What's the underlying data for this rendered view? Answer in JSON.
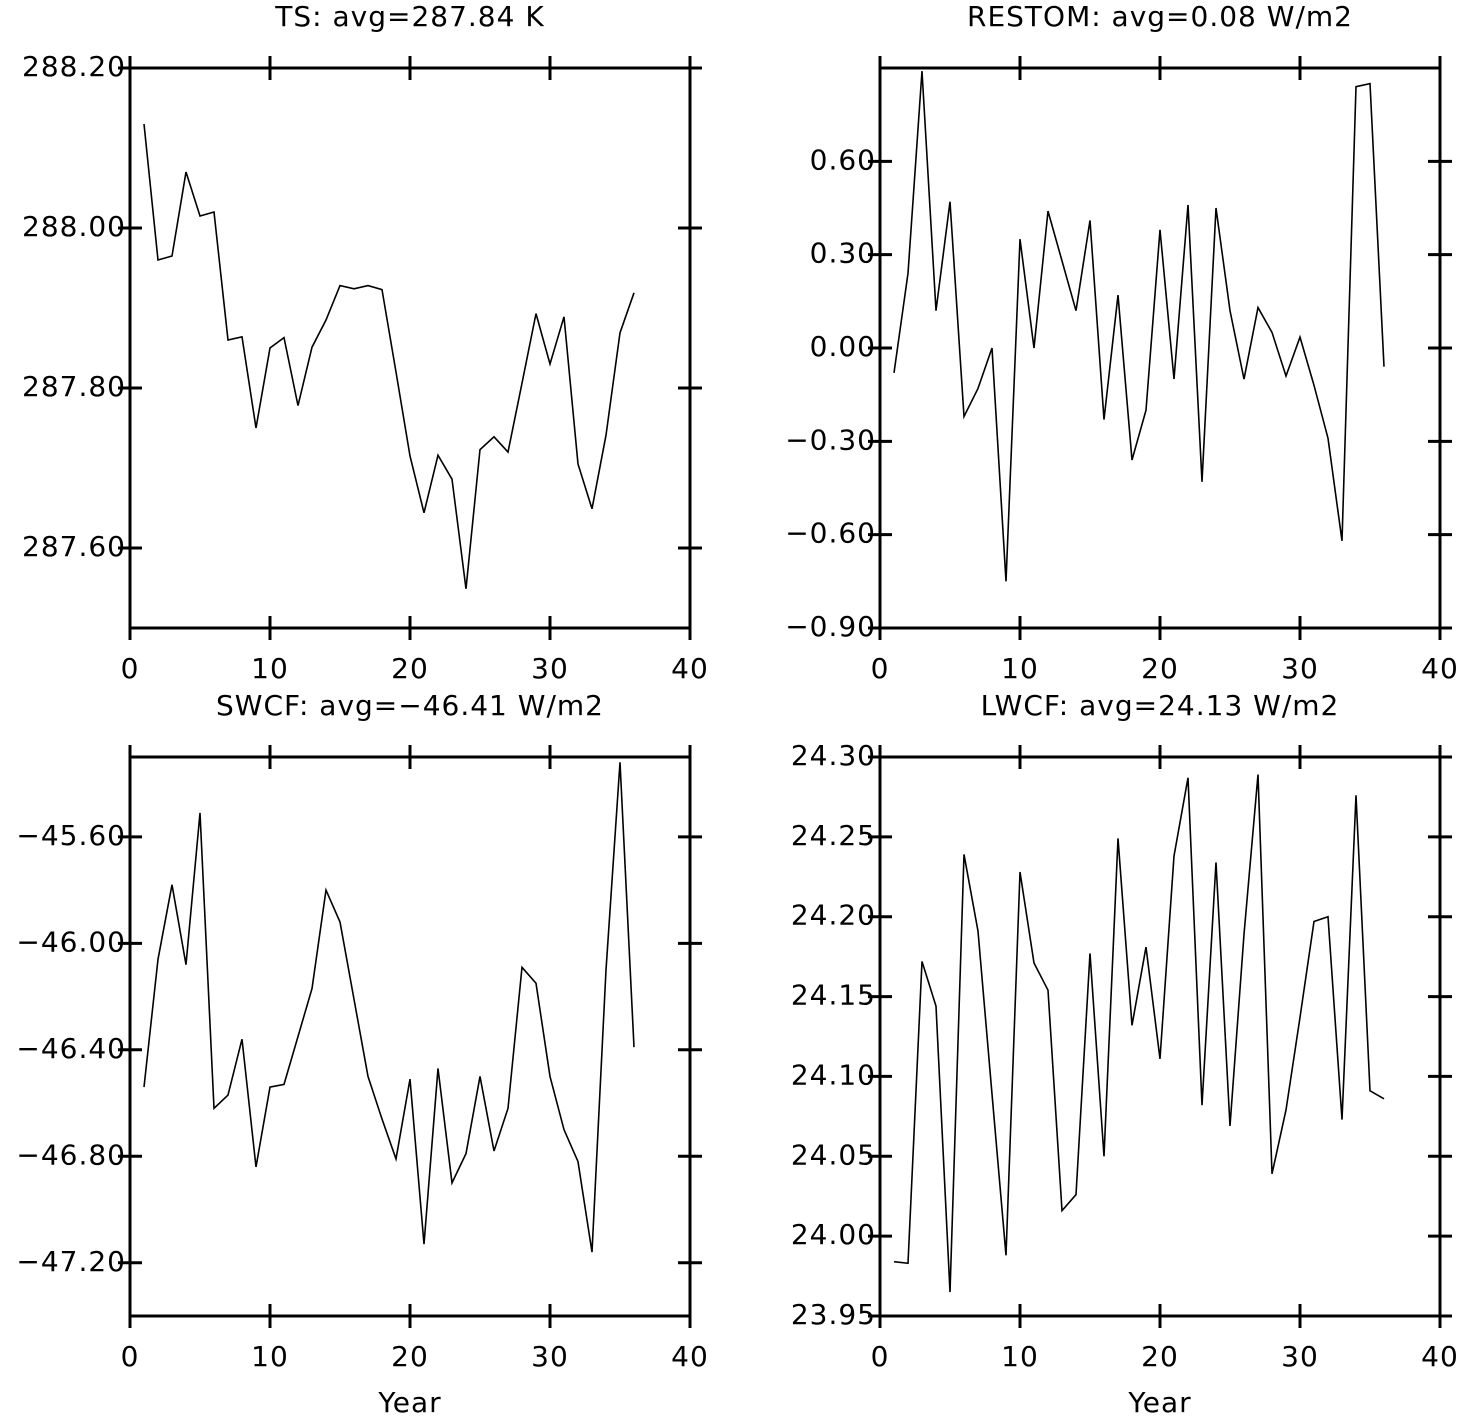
{
  "chart_data": [
    {
      "type": "line",
      "title": "TS: avg=287.84 K",
      "color": "#000000",
      "x": [
        1,
        2,
        3,
        4,
        5,
        6,
        7,
        8,
        9,
        10,
        11,
        12,
        13,
        14,
        15,
        16,
        17,
        18,
        19,
        20,
        21,
        22,
        23,
        24,
        25,
        26,
        27,
        28,
        29,
        30,
        31,
        32,
        33,
        34,
        35,
        36
      ],
      "values": [
        288.13,
        287.96,
        287.965,
        288.07,
        288.015,
        288.02,
        287.86,
        287.864,
        287.75,
        287.85,
        287.863,
        287.778,
        287.851,
        287.885,
        287.928,
        287.924,
        287.928,
        287.923,
        287.82,
        287.715,
        287.644,
        287.716,
        287.686,
        287.549,
        287.723,
        287.739,
        287.72,
        287.806,
        287.893,
        287.83,
        287.889,
        287.705,
        287.649,
        287.741,
        287.869,
        287.919
      ],
      "xlim": [
        0,
        40
      ],
      "xticks": [
        0,
        10,
        20,
        30,
        40
      ],
      "ylim": [
        287.5,
        288.2
      ],
      "yticks": [
        {
          "value": 287.6,
          "label": "287.60"
        },
        {
          "value": 287.8,
          "label": "287.80"
        },
        {
          "value": 288.0,
          "label": "288.00"
        },
        {
          "value": 288.2,
          "label": "288.20"
        }
      ]
    },
    {
      "type": "line",
      "title": "RESTOM: avg=0.08 W/m2",
      "color": "#000000",
      "x": [
        1,
        2,
        3,
        4,
        5,
        6,
        7,
        8,
        9,
        10,
        11,
        12,
        13,
        14,
        15,
        16,
        17,
        18,
        19,
        20,
        21,
        22,
        23,
        24,
        25,
        26,
        27,
        28,
        29,
        30,
        31,
        32,
        33,
        34,
        35,
        36
      ],
      "values": [
        -0.08,
        0.24,
        0.89,
        0.12,
        0.47,
        -0.22,
        -0.13,
        0.0,
        -0.75,
        0.35,
        0.0,
        0.44,
        0.28,
        0.12,
        0.41,
        -0.23,
        0.17,
        -0.36,
        -0.2,
        0.38,
        -0.1,
        0.46,
        -0.43,
        0.45,
        0.12,
        -0.1,
        0.13,
        0.05,
        -0.09,
        0.035,
        -0.12,
        -0.29,
        -0.62,
        0.84,
        0.85,
        -0.06
      ],
      "xlim": [
        0,
        40
      ],
      "xticks": [
        0,
        10,
        20,
        30,
        40
      ],
      "ylim": [
        -0.9,
        0.9
      ],
      "yticks": [
        {
          "value": -0.9,
          "label": "−0.90"
        },
        {
          "value": -0.6,
          "label": "−0.60"
        },
        {
          "value": -0.3,
          "label": "−0.30"
        },
        {
          "value": 0,
          "label": "0.00"
        },
        {
          "value": 0.3,
          "label": "0.30"
        },
        {
          "value": 0.6,
          "label": "0.60"
        }
      ]
    },
    {
      "type": "line",
      "title": "SWCF: avg=−46.41 W/m2",
      "xlabel": "Year",
      "color": "#000000",
      "x": [
        1,
        2,
        3,
        4,
        5,
        6,
        7,
        8,
        9,
        10,
        11,
        12,
        13,
        14,
        15,
        16,
        17,
        18,
        19,
        20,
        21,
        22,
        23,
        24,
        25,
        26,
        27,
        28,
        29,
        30,
        31,
        32,
        33,
        34,
        35,
        36
      ],
      "values": [
        -46.54,
        -46.06,
        -45.78,
        -46.08,
        -45.51,
        -46.62,
        -46.57,
        -46.36,
        -46.84,
        -46.54,
        -46.53,
        -46.35,
        -46.17,
        -45.8,
        -45.92,
        -46.21,
        -46.5,
        -46.66,
        -46.81,
        -46.51,
        -47.13,
        -46.47,
        -46.9,
        -46.79,
        -46.5,
        -46.78,
        -46.62,
        -46.09,
        -46.15,
        -46.5,
        -46.7,
        -46.82,
        -47.16,
        -46.1,
        -45.32,
        -46.39
      ],
      "xlim": [
        0,
        40
      ],
      "xticks": [
        0,
        10,
        20,
        30,
        40
      ],
      "ylim": [
        -47.4,
        -45.3
      ],
      "yticks": [
        {
          "value": -47.2,
          "label": "−47.20"
        },
        {
          "value": -46.8,
          "label": "−46.80"
        },
        {
          "value": -46.4,
          "label": "−46.40"
        },
        {
          "value": -46.0,
          "label": "−46.00"
        },
        {
          "value": -45.6,
          "label": "−45.60"
        }
      ]
    },
    {
      "type": "line",
      "title": "LWCF: avg=24.13 W/m2",
      "xlabel": "Year",
      "color": "#000000",
      "x": [
        1,
        2,
        3,
        4,
        5,
        6,
        7,
        8,
        9,
        10,
        11,
        12,
        13,
        14,
        15,
        16,
        17,
        18,
        19,
        20,
        21,
        22,
        23,
        24,
        25,
        26,
        27,
        28,
        29,
        30,
        31,
        32,
        33,
        34,
        35,
        36
      ],
      "values": [
        23.984,
        23.983,
        24.172,
        24.144,
        23.965,
        24.239,
        24.191,
        24.089,
        23.988,
        24.228,
        24.171,
        24.154,
        24.016,
        24.026,
        24.177,
        24.05,
        24.249,
        24.132,
        24.181,
        24.111,
        24.238,
        24.287,
        24.082,
        24.234,
        24.069,
        24.189,
        24.289,
        24.039,
        24.079,
        24.137,
        24.197,
        24.2,
        24.073,
        24.276,
        24.091,
        24.086
      ],
      "xlim": [
        0,
        40
      ],
      "xticks": [
        0,
        10,
        20,
        30,
        40
      ],
      "ylim": [
        23.95,
        24.3
      ],
      "yticks": [
        {
          "value": 23.95,
          "label": "23.95"
        },
        {
          "value": 24.0,
          "label": "24.00"
        },
        {
          "value": 24.05,
          "label": "24.05"
        },
        {
          "value": 24.1,
          "label": "24.10"
        },
        {
          "value": 24.15,
          "label": "24.15"
        },
        {
          "value": 24.2,
          "label": "24.20"
        },
        {
          "value": 24.25,
          "label": "24.25"
        },
        {
          "value": 24.3,
          "label": "24.30"
        }
      ]
    }
  ]
}
